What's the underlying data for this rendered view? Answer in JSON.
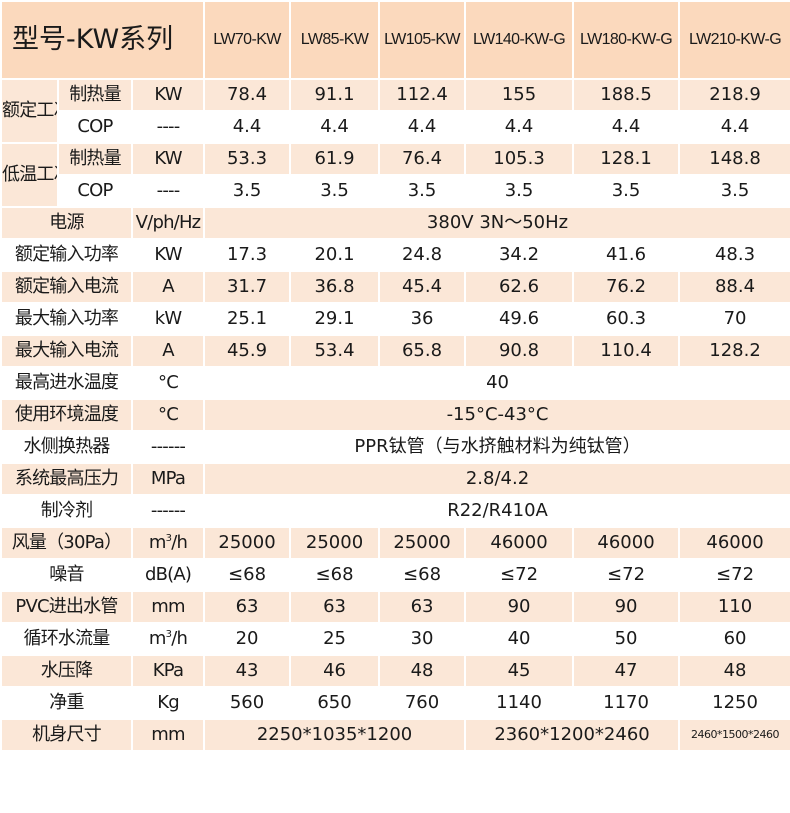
{
  "header": {
    "title": "型号-KW系列",
    "models": [
      "LW70-KW",
      "LW85-KW",
      "LW105-KW",
      "LW140-KW-G",
      "LW180-KW-G",
      "LW210-KW-G"
    ]
  },
  "rated": {
    "condition": "额定工况",
    "heat": {
      "label": "制热量",
      "unit": "KW",
      "values": [
        "78.4",
        "91.1",
        "112.4",
        "155",
        "188.5",
        "218.9"
      ]
    },
    "cop": {
      "label": "COP",
      "unit": "----",
      "values": [
        "4.4",
        "4.4",
        "4.4",
        "4.4",
        "4.4",
        "4.4"
      ]
    }
  },
  "lowtemp": {
    "condition": "低温工况",
    "heat": {
      "label": "制热量",
      "unit": "KW",
      "values": [
        "53.3",
        "61.9",
        "76.4",
        "105.3",
        "128.1",
        "148.8"
      ]
    },
    "cop": {
      "label": "COP",
      "unit": "----",
      "values": [
        "3.5",
        "3.5",
        "3.5",
        "3.5",
        "3.5",
        "3.5"
      ]
    }
  },
  "power_supply": {
    "label": "电源",
    "unit": "V/ph/Hz",
    "value": "380V 3N～50Hz"
  },
  "rated_input_power": {
    "label": "额定输入功率",
    "unit": "KW",
    "values": [
      "17.3",
      "20.1",
      "24.8",
      "34.2",
      "41.6",
      "48.3"
    ]
  },
  "rated_input_current": {
    "label": "额定输入电流",
    "unit": "A",
    "values": [
      "31.7",
      "36.8",
      "45.4",
      "62.6",
      "76.2",
      "88.4"
    ]
  },
  "max_input_power": {
    "label": "最大输入功率",
    "unit": "kW",
    "values": [
      "25.1",
      "29.1",
      "36",
      "49.6",
      "60.3",
      "70"
    ]
  },
  "max_input_current": {
    "label": "最大输入电流",
    "unit": "A",
    "values": [
      "45.9",
      "53.4",
      "65.8",
      "90.8",
      "110.4",
      "128.2"
    ]
  },
  "max_inlet_temp": {
    "label": "最高进水温度",
    "unit": "°C",
    "value": "40"
  },
  "ambient_temp": {
    "label": "使用环境温度",
    "unit": "°C",
    "value": "-15°C-43°C"
  },
  "heat_exchanger": {
    "label": "水侧换热器",
    "unit": "------",
    "value": "PPR钛管（与水挤触材料为纯钛管）"
  },
  "max_pressure": {
    "label": "系统最高压力",
    "unit": "MPa",
    "value": "2.8/4.2"
  },
  "refrigerant": {
    "label": "制冷剂",
    "unit": "------",
    "value": "R22/R410A"
  },
  "airflow": {
    "label": "风量（30Pa）",
    "unit_base": "m",
    "unit_exp": "3",
    "unit_tail": "/h",
    "values": [
      "25000",
      "25000",
      "25000",
      "46000",
      "46000",
      "46000"
    ]
  },
  "noise": {
    "label": "噪音",
    "unit": "dB(A)",
    "values": [
      "≤68",
      "≤68",
      "≤68",
      "≤72",
      "≤72",
      "≤72"
    ]
  },
  "pvc_pipe": {
    "label": "PVC进出水管",
    "unit": "mm",
    "values": [
      "63",
      "63",
      "63",
      "90",
      "90",
      "110"
    ]
  },
  "water_flow": {
    "label": "循环水流量",
    "unit_base": "m",
    "unit_exp": "3",
    "unit_tail": "/h",
    "values": [
      "20",
      "25",
      "30",
      "40",
      "50",
      "60"
    ]
  },
  "pressure_drop": {
    "label": "水压降",
    "unit": "KPa",
    "values": [
      "43",
      "46",
      "48",
      "45",
      "47",
      "48"
    ]
  },
  "net_weight": {
    "label": "净重",
    "unit": "Kg",
    "values": [
      "560",
      "650",
      "760",
      "1140",
      "1170",
      "1250"
    ]
  },
  "dimensions": {
    "label": "机身尺寸",
    "unit": "mm",
    "group1": "2250*1035*1200",
    "group2": "2360*1200*2460",
    "group3": "2460*1500*2460"
  }
}
